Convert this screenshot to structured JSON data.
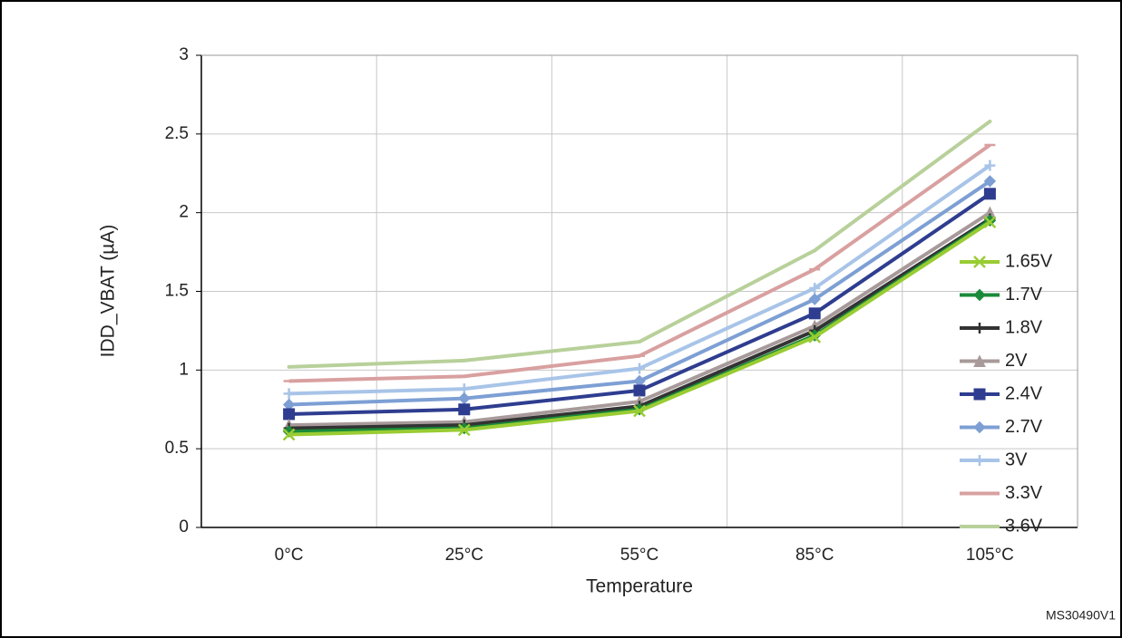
{
  "chart_data": {
    "type": "line",
    "y_label": "IDD_VBAT (µA)",
    "x_label": "Temperature",
    "note": "MS30490V1",
    "categories": [
      "0°C",
      "25°C",
      "55°C",
      "85°C",
      "105°C"
    ],
    "ylim": [
      0,
      3
    ],
    "yticks": [
      0,
      0.5,
      1,
      1.5,
      2,
      2.5,
      3
    ],
    "grid": true,
    "legend": "right",
    "series": [
      {
        "name": "1.65V",
        "color": "#99cc33",
        "marker": "x",
        "values": [
          0.59,
          0.62,
          0.74,
          1.21,
          1.94
        ]
      },
      {
        "name": "1.7V",
        "color": "#1a8a3a",
        "marker": "diamond",
        "values": [
          0.61,
          0.63,
          0.75,
          1.22,
          1.95
        ]
      },
      {
        "name": "1.8V",
        "color": "#333333",
        "marker": "plus",
        "values": [
          0.63,
          0.65,
          0.77,
          1.25,
          1.96
        ]
      },
      {
        "name": "2V",
        "color": "#a89a9a",
        "marker": "triangle",
        "values": [
          0.65,
          0.67,
          0.8,
          1.28,
          2.0
        ]
      },
      {
        "name": "2.4V",
        "color": "#2e3d8f",
        "marker": "square",
        "values": [
          0.72,
          0.75,
          0.87,
          1.36,
          2.12
        ]
      },
      {
        "name": "2.7V",
        "color": "#7d9fd4",
        "marker": "diamond",
        "values": [
          0.78,
          0.82,
          0.93,
          1.45,
          2.2
        ]
      },
      {
        "name": "3V",
        "color": "#a8c4e8",
        "marker": "plus",
        "values": [
          0.85,
          0.88,
          1.01,
          1.52,
          2.3
        ]
      },
      {
        "name": "3.3V",
        "color": "#d9a0a0",
        "marker": "dash",
        "values": [
          0.93,
          0.96,
          1.09,
          1.64,
          2.43
        ]
      },
      {
        "name": "3.6V",
        "color": "#b8d09a",
        "marker": "none",
        "values": [
          1.02,
          1.06,
          1.18,
          1.76,
          2.58
        ]
      }
    ]
  }
}
